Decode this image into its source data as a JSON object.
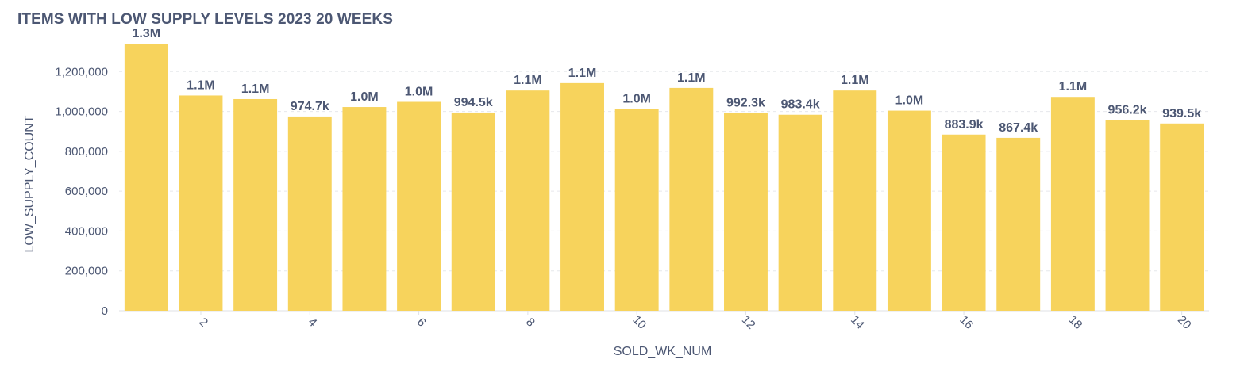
{
  "chart_data": {
    "type": "bar",
    "title": "ITEMS WITH LOW SUPPLY LEVELS 2023 20 WEEKS",
    "xlabel": "SOLD_WK_NUM",
    "ylabel": "LOW_SUPPLY_COUNT",
    "color": "#f7d35c",
    "ylim": [
      0,
      1400000
    ],
    "yticks": [
      {
        "value": 0,
        "label": "0"
      },
      {
        "value": 200000,
        "label": "200,000"
      },
      {
        "value": 400000,
        "label": "400,000"
      },
      {
        "value": 600000,
        "label": "600,000"
      },
      {
        "value": 800000,
        "label": "800,000"
      },
      {
        "value": 1000000,
        "label": "1,000,000"
      },
      {
        "value": 1200000,
        "label": "1,200,000"
      }
    ],
    "xtick_labels": [
      "2",
      "4",
      "6",
      "8",
      "10",
      "12",
      "14",
      "16",
      "18",
      "20"
    ],
    "categories": [
      1,
      2,
      3,
      4,
      5,
      6,
      7,
      8,
      9,
      10,
      11,
      12,
      13,
      14,
      15,
      16,
      17,
      18,
      19,
      20
    ],
    "values": [
      1340000,
      1080000,
      1062000,
      974700,
      1022000,
      1048000,
      994500,
      1105000,
      1142000,
      1012000,
      1118000,
      992300,
      983400,
      1105000,
      1004000,
      883900,
      867400,
      1073000,
      956200,
      939500
    ],
    "data_labels": [
      "1.3M",
      "1.1M",
      "1.1M",
      "974.7k",
      "1.0M",
      "1.0M",
      "994.5k",
      "1.1M",
      "1.1M",
      "1.0M",
      "1.1M",
      "992.3k",
      "983.4k",
      "1.1M",
      "1.0M",
      "883.9k",
      "867.4k",
      "1.1M",
      "956.2k",
      "939.5k"
    ],
    "grid": true,
    "legend": "none"
  }
}
